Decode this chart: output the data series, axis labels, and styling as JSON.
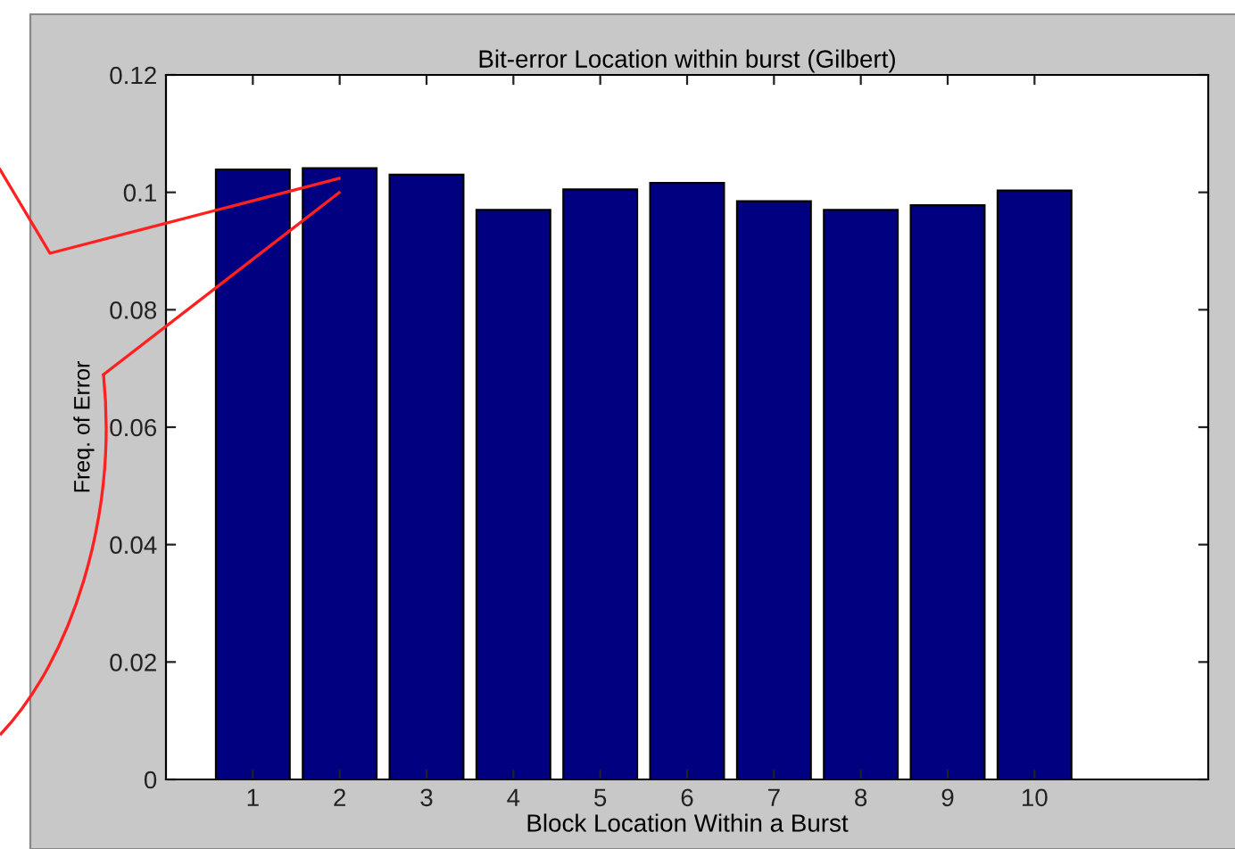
{
  "chart_data": {
    "type": "bar",
    "title": "Bit-error Location within burst (Gilbert)",
    "xlabel": "Block Location Within a Burst",
    "ylabel": "Freq. of Error",
    "x": [
      1,
      2,
      3,
      4,
      5,
      6,
      7,
      8,
      9,
      10
    ],
    "values": [
      0.1039,
      0.1041,
      0.103,
      0.097,
      0.1005,
      0.1016,
      0.0985,
      0.097,
      0.0978,
      0.1003
    ],
    "color": "#000080",
    "xlim": [
      0,
      12
    ],
    "xticks": [
      1,
      2,
      3,
      4,
      5,
      6,
      7,
      8,
      9,
      10
    ],
    "ylim": [
      0,
      0.12
    ],
    "yticks": [
      0,
      0.02,
      0.04,
      0.06,
      0.08,
      {
        "value": 0.1,
        "label": "0.1"
      },
      0.12
    ],
    "grid": false,
    "legend": false
  }
}
